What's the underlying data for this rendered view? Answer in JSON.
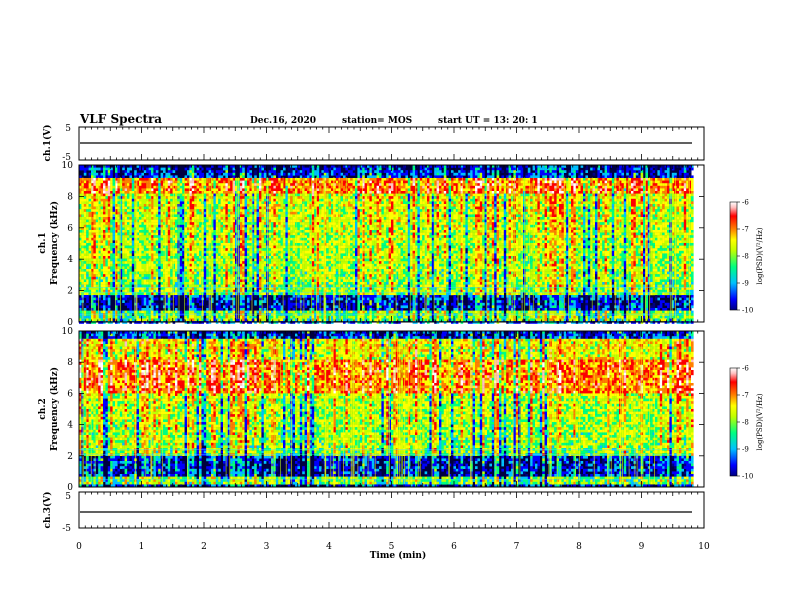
{
  "header": {
    "title": "VLF Spectra",
    "date": "Dec.16, 2020",
    "station": "station= MOS",
    "start": "start UT =  13: 20: 1"
  },
  "chart_data": [
    {
      "type": "line",
      "panel": "ch1-waveform",
      "ylabel": "ch.1(V)",
      "ylim": [
        -5,
        5
      ],
      "yticks": [
        "5",
        "-5"
      ],
      "xlim": [
        0,
        10
      ],
      "series": [
        {
          "values": [
            0
          ]
        }
      ]
    },
    {
      "type": "heatmap",
      "panel": "ch1-spectrogram",
      "ylabel_line1": "ch.1",
      "ylabel_line2": "Frequency (kHz)",
      "ylim": [
        0,
        10
      ],
      "yticks": [
        "0",
        "2",
        "4",
        "6",
        "8",
        "10"
      ],
      "xlim": [
        0,
        9.8
      ],
      "colorbar": {
        "label": "log(PSD)(V²/Hz)",
        "range": [
          -10,
          -6
        ],
        "ticks": [
          "-6",
          "-7",
          "-8",
          "-9",
          "-10"
        ],
        "colormap": [
          "#000080",
          "#0000ff",
          "#00c0ff",
          "#00ff80",
          "#c0ff00",
          "#ffff00",
          "#ff8000",
          "#ff0000",
          "#ffc0c0",
          "#ffffff"
        ]
      },
      "bands_khz": {
        "strong": [
          8.2,
          9.3
        ],
        "broadband": [
          1.8,
          9.2
        ],
        "quiet": [
          0.8,
          1.6
        ],
        "low": [
          0.2,
          0.8
        ]
      }
    },
    {
      "type": "heatmap",
      "panel": "ch2-spectrogram",
      "ylabel_line1": "ch.2",
      "ylabel_line2": "Frequency (kHz)",
      "ylim": [
        0,
        10
      ],
      "yticks": [
        "0",
        "2",
        "4",
        "6",
        "8",
        "10"
      ],
      "xlim": [
        0,
        9.8
      ],
      "colorbar": {
        "label": "log(PSD)(V²/Hz)",
        "range": [
          -10,
          -6
        ],
        "ticks": [
          "-6",
          "-7",
          "-8",
          "-9",
          "-10"
        ],
        "colormap": [
          "#000080",
          "#0000ff",
          "#00c0ff",
          "#00ff80",
          "#c0ff00",
          "#ffff00",
          "#ff8000",
          "#ff0000",
          "#ffc0c0",
          "#ffffff"
        ]
      },
      "bands_khz": {
        "strong": [
          6.0,
          8.3
        ],
        "broadband": [
          2.0,
          9.5
        ],
        "quiet": [
          0.8,
          1.8
        ],
        "low": [
          0.2,
          0.8
        ]
      }
    },
    {
      "type": "line",
      "panel": "ch3-waveform",
      "ylabel": "ch.3(V)",
      "ylim": [
        -5,
        5
      ],
      "yticks": [
        "5",
        "-5"
      ],
      "xlim": [
        0,
        10
      ],
      "xlabel": "Time (min)",
      "xticks": [
        "0",
        "1",
        "2",
        "3",
        "4",
        "5",
        "6",
        "7",
        "8",
        "9",
        "10"
      ],
      "series": [
        {
          "values": [
            0
          ]
        }
      ]
    }
  ]
}
